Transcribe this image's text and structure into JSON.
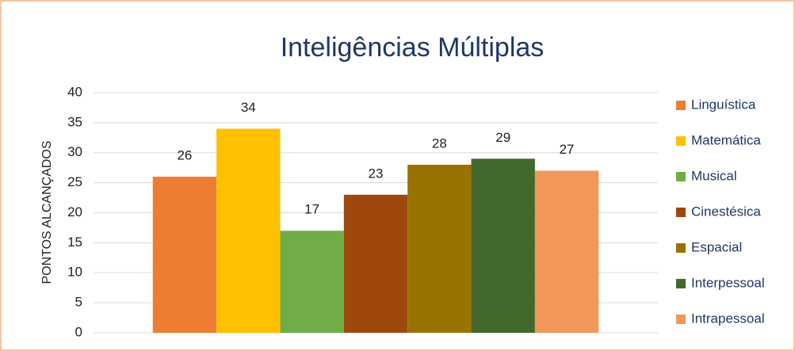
{
  "chart_data": {
    "type": "bar",
    "title": "Inteligências Múltiplas",
    "y_label": "PONTOS ALCANÇADOS",
    "categories": [
      null
    ],
    "series": [
      {
        "name": "Linguística",
        "color": "#ed7d31",
        "values": [
          26
        ]
      },
      {
        "name": "Matemática",
        "color": "#ffc000",
        "values": [
          34
        ]
      },
      {
        "name": "Musical",
        "color": "#70ad47",
        "values": [
          17
        ]
      },
      {
        "name": "Cinestésica",
        "color": "#9e480e",
        "values": [
          23
        ]
      },
      {
        "name": "Espacial",
        "color": "#997300",
        "values": [
          28
        ]
      },
      {
        "name": "Interpessoal",
        "color": "#43682b",
        "values": [
          29
        ]
      },
      {
        "name": "Intrapessoal",
        "color": "#f1975a",
        "values": [
          27
        ]
      }
    ],
    "ylim": [
      0,
      40
    ],
    "yticks": [
      0,
      5,
      10,
      15,
      20,
      25,
      30,
      35,
      40
    ],
    "grid": true,
    "legend": "right",
    "data_labels": true
  }
}
